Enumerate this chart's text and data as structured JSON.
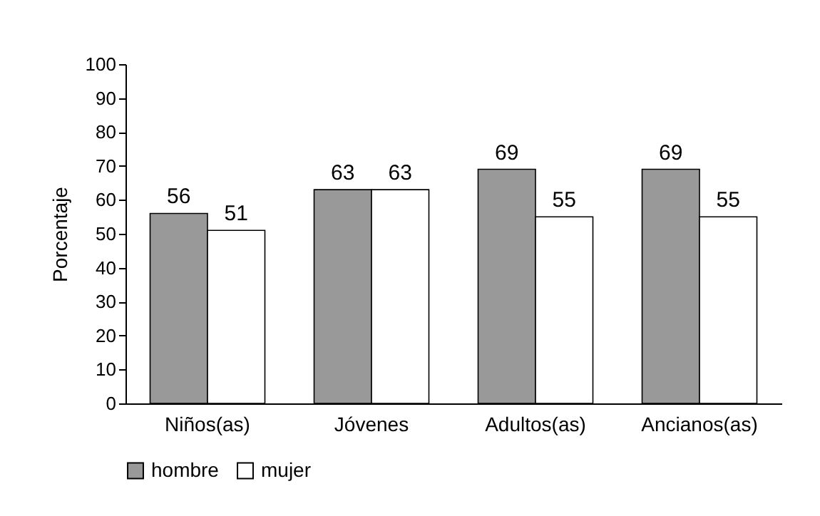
{
  "chart_data": {
    "type": "bar",
    "ylabel": "Porcentaje",
    "categories": [
      "Niños(as)",
      "Jóvenes",
      "Adultos(as)",
      "Ancianos(as)"
    ],
    "series": [
      {
        "name": "hombre",
        "color": "#999999",
        "values": [
          56,
          63,
          69,
          69
        ]
      },
      {
        "name": "mujer",
        "color": "#ffffff",
        "values": [
          51,
          63,
          55,
          55
        ]
      }
    ],
    "ylim": [
      0,
      100
    ],
    "yticks": [
      0,
      10,
      20,
      30,
      40,
      50,
      60,
      70,
      80,
      90,
      100
    ],
    "grid": false,
    "legend": "bottom",
    "data_labels": true
  }
}
